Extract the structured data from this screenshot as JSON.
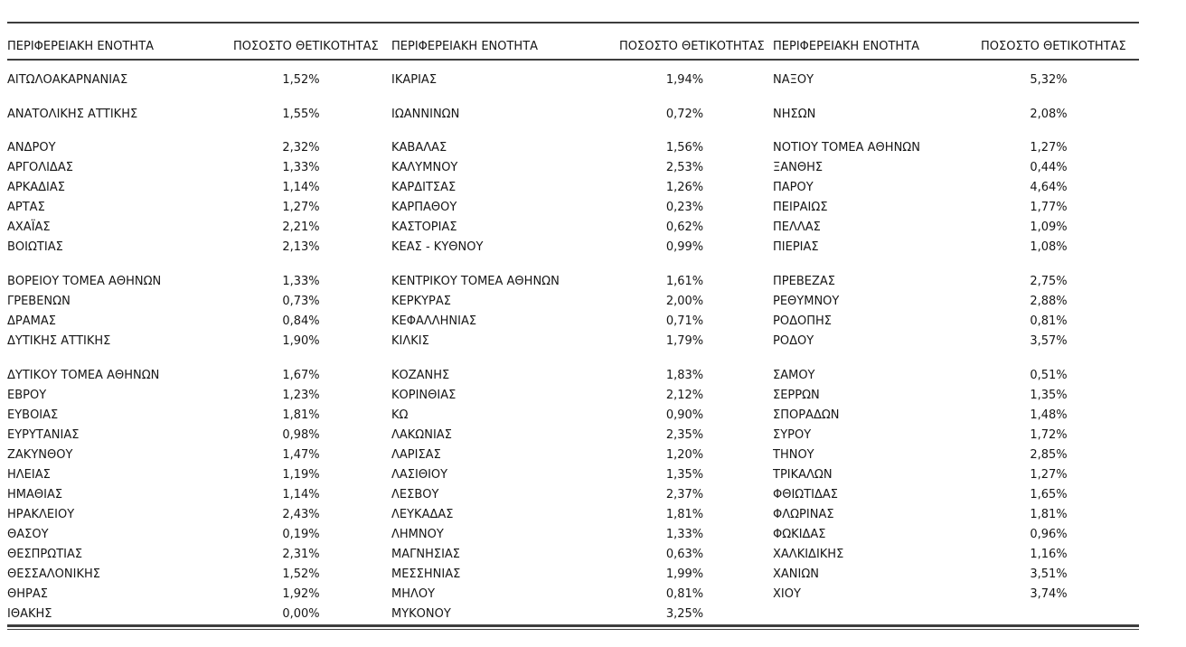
{
  "document": {
    "background": "#ffffff",
    "text_color": "#161616",
    "rule_color": "#3d3d3d"
  },
  "table": {
    "header": {
      "region_label": "ΠΕΡΙΦΕΡΕΙΑΚΗ ΕΝΟΤΗΤΑ",
      "positivity_label": "ΠΟΣΟΣΤΟ ΘΕΤΙΚΟΤΗΤΑΣ"
    },
    "groups": [
      {
        "rows": [
          {
            "name": "ΑΙΤΩΛΟΑΚΑΡΝΑΝΙΑΣ",
            "value": "1,52%"
          },
          {
            "name": "ΑΝΑΤΟΛΙΚΗΣ ΑΤΤΙΚΗΣ",
            "value": "1,55%"
          },
          {
            "name": "ΑΝΔΡΟΥ",
            "value": "2,32%"
          },
          {
            "name": "ΑΡΓΟΛΙΔΑΣ",
            "value": "1,33%"
          },
          {
            "name": "ΑΡΚΑΔΙΑΣ",
            "value": "1,14%"
          },
          {
            "name": "ΑΡΤΑΣ",
            "value": "1,27%"
          },
          {
            "name": "ΑΧΑΪΑΣ",
            "value": "2,21%"
          },
          {
            "name": "ΒΟΙΩΤΙΑΣ",
            "value": "2,13%"
          },
          {
            "name": "ΒΟΡΕΙΟΥ ΤΟΜΕΑ ΑΘΗΝΩΝ",
            "value": "1,33%"
          },
          {
            "name": "ΓΡΕΒΕΝΩΝ",
            "value": "0,73%"
          },
          {
            "name": "ΔΡΑΜΑΣ",
            "value": "0,84%"
          },
          {
            "name": "ΔΥΤΙΚΗΣ ΑΤΤΙΚΗΣ",
            "value": "1,90%"
          },
          {
            "name": "ΔΥΤΙΚΟΥ ΤΟΜΕΑ ΑΘΗΝΩΝ",
            "value": "1,67%"
          },
          {
            "name": "ΕΒΡΟΥ",
            "value": "1,23%"
          },
          {
            "name": "ΕΥΒΟΙΑΣ",
            "value": "1,81%"
          },
          {
            "name": "ΕΥΡΥΤΑΝΙΑΣ",
            "value": "0,98%"
          },
          {
            "name": "ΖΑΚΥΝΘΟΥ",
            "value": "1,47%"
          },
          {
            "name": "ΗΛΕΙΑΣ",
            "value": "1,19%"
          },
          {
            "name": "ΗΜΑΘΙΑΣ",
            "value": "1,14%"
          },
          {
            "name": "ΗΡΑΚΛΕΙΟΥ",
            "value": "2,43%"
          },
          {
            "name": "ΘΑΣΟΥ",
            "value": "0,19%"
          },
          {
            "name": "ΘΕΣΠΡΩΤΙΑΣ",
            "value": "2,31%"
          },
          {
            "name": "ΘΕΣΣΑΛΟΝΙΚΗΣ",
            "value": "1,52%"
          },
          {
            "name": "ΘΗΡΑΣ",
            "value": "1,92%"
          },
          {
            "name": "ΙΘΑΚΗΣ",
            "value": "0,00%"
          }
        ]
      },
      {
        "rows": [
          {
            "name": "ΙΚΑΡΙΑΣ",
            "value": "1,94%"
          },
          {
            "name": "ΙΩΑΝΝΙΝΩΝ",
            "value": "0,72%"
          },
          {
            "name": "ΚΑΒΑΛΑΣ",
            "value": "1,56%"
          },
          {
            "name": "ΚΑΛΥΜΝΟΥ",
            "value": "2,53%"
          },
          {
            "name": "ΚΑΡΔΙΤΣΑΣ",
            "value": "1,26%"
          },
          {
            "name": "ΚΑΡΠΑΘΟΥ",
            "value": "0,23%"
          },
          {
            "name": "ΚΑΣΤΟΡΙΑΣ",
            "value": "0,62%"
          },
          {
            "name": "ΚΕΑΣ - ΚΥΘΝΟΥ",
            "value": "0,99%"
          },
          {
            "name": "ΚΕΝΤΡΙΚΟΥ ΤΟΜΕΑ ΑΘΗΝΩΝ",
            "value": "1,61%"
          },
          {
            "name": "ΚΕΡΚΥΡΑΣ",
            "value": "2,00%"
          },
          {
            "name": "ΚΕΦΑΛΛΗΝΙΑΣ",
            "value": "0,71%"
          },
          {
            "name": "ΚΙΛΚΙΣ",
            "value": "1,79%"
          },
          {
            "name": "ΚΟΖΑΝΗΣ",
            "value": "1,83%"
          },
          {
            "name": "ΚΟΡΙΝΘΙΑΣ",
            "value": "2,12%"
          },
          {
            "name": "ΚΩ",
            "value": "0,90%"
          },
          {
            "name": "ΛΑΚΩΝΙΑΣ",
            "value": "2,35%"
          },
          {
            "name": "ΛΑΡΙΣΑΣ",
            "value": "1,20%"
          },
          {
            "name": "ΛΑΣΙΘΙΟΥ",
            "value": "1,35%"
          },
          {
            "name": "ΛΕΣΒΟΥ",
            "value": "2,37%"
          },
          {
            "name": "ΛΕΥΚΑΔΑΣ",
            "value": "1,81%"
          },
          {
            "name": "ΛΗΜΝΟΥ",
            "value": "1,33%"
          },
          {
            "name": "ΜΑΓΝΗΣΙΑΣ",
            "value": "0,63%"
          },
          {
            "name": "ΜΕΣΣΗΝΙΑΣ",
            "value": "1,99%"
          },
          {
            "name": "ΜΗΛΟΥ",
            "value": "0,81%"
          },
          {
            "name": "ΜΥΚΟΝΟΥ",
            "value": "3,25%"
          }
        ]
      },
      {
        "rows": [
          {
            "name": "ΝΑΞΟΥ",
            "value": "5,32%"
          },
          {
            "name": "ΝΗΣΩΝ",
            "value": "2,08%"
          },
          {
            "name": "ΝΟΤΙΟΥ ΤΟΜΕΑ ΑΘΗΝΩΝ",
            "value": "1,27%"
          },
          {
            "name": "ΞΑΝΘΗΣ",
            "value": "0,44%"
          },
          {
            "name": "ΠΑΡΟΥ",
            "value": "4,64%"
          },
          {
            "name": "ΠΕΙΡΑΙΩΣ",
            "value": "1,77%"
          },
          {
            "name": "ΠΕΛΛΑΣ",
            "value": "1,09%"
          },
          {
            "name": "ΠΙΕΡΙΑΣ",
            "value": "1,08%"
          },
          {
            "name": "ΠΡΕΒΕΖΑΣ",
            "value": "2,75%"
          },
          {
            "name": "ΡΕΘΥΜΝΟΥ",
            "value": "2,88%"
          },
          {
            "name": "ΡΟΔΟΠΗΣ",
            "value": "0,81%"
          },
          {
            "name": "ΡΟΔΟΥ",
            "value": "3,57%"
          },
          {
            "name": "ΣΑΜΟΥ",
            "value": "0,51%"
          },
          {
            "name": "ΣΕΡΡΩΝ",
            "value": "1,35%"
          },
          {
            "name": "ΣΠΟΡΑΔΩΝ",
            "value": "1,48%"
          },
          {
            "name": "ΣΥΡΟΥ",
            "value": "1,72%"
          },
          {
            "name": "ΤΗΝΟΥ",
            "value": "2,85%"
          },
          {
            "name": "ΤΡΙΚΑΛΩΝ",
            "value": "1,27%"
          },
          {
            "name": "ΦΘΙΩΤΙΔΑΣ",
            "value": "1,65%"
          },
          {
            "name": "ΦΛΩΡΙΝΑΣ",
            "value": "1,81%"
          },
          {
            "name": "ΦΩΚΙΔΑΣ",
            "value": "0,96%"
          },
          {
            "name": "ΧΑΛΚΙΔΙΚΗΣ",
            "value": "1,16%"
          },
          {
            "name": "ΧΑΝΙΩΝ",
            "value": "3,51%"
          },
          {
            "name": "ΧΙΟΥ",
            "value": "3,74%"
          }
        ]
      }
    ]
  }
}
